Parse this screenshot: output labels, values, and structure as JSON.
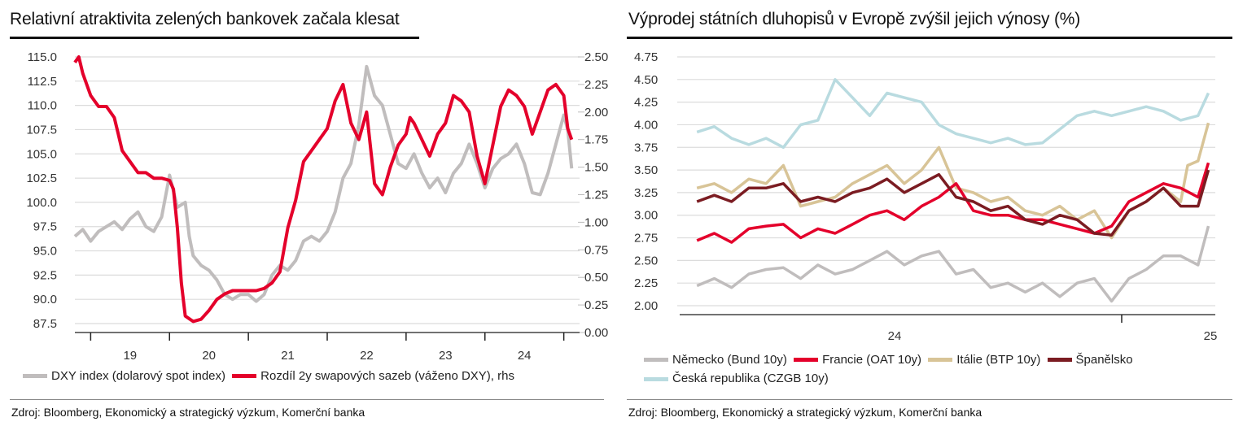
{
  "left_panel": {
    "title": "Relativní atraktivita zelených bankovek začala klesat",
    "source": "Zdroj: Bloomberg, Ekonomický a strategický výzkum, Komerční banka"
  },
  "right_panel": {
    "title": "Výprodej státních dluhopisů v Evropě zvýšil jejich výnosy (%)",
    "source": "Zdroj: Bloomberg, Ekonomický a strategický výzkum, Komerční banka"
  },
  "chart_data": [
    {
      "type": "line",
      "title": "Relativní atraktivita zelených bankovek začala klesat",
      "xlabel": "",
      "ylabel": "",
      "x_tick_labels": [
        "19",
        "20",
        "21",
        "22",
        "23",
        "24"
      ],
      "x_range": [
        2018.8,
        2025.2
      ],
      "y_left": {
        "range": [
          87.5,
          115.0
        ],
        "ticks": [
          "115.0",
          "112.5",
          "110.0",
          "107.5",
          "105.0",
          "102.5",
          "100.0",
          "97.5",
          "95.0",
          "92.5",
          "90.0",
          "87.5"
        ]
      },
      "y_right": {
        "range": [
          0.0,
          2.5
        ],
        "ticks": [
          "2.50",
          "2.25",
          "2.00",
          "1.75",
          "1.50",
          "1.25",
          "1.00",
          "0.75",
          "0.50",
          "0.25",
          "0.00"
        ]
      },
      "grid": true,
      "legend_position": "bottom",
      "series": [
        {
          "name": "DXY index (dolarový spot index)",
          "axis": "left",
          "color": "#c0bdbd",
          "x": [
            2018.8,
            2018.9,
            2019.0,
            2019.1,
            2019.2,
            2019.3,
            2019.4,
            2019.5,
            2019.6,
            2019.7,
            2019.8,
            2019.9,
            2020.0,
            2020.1,
            2020.2,
            2020.25,
            2020.3,
            2020.4,
            2020.5,
            2020.6,
            2020.7,
            2020.8,
            2020.9,
            2021.0,
            2021.1,
            2021.2,
            2021.3,
            2021.4,
            2021.5,
            2021.6,
            2021.7,
            2021.8,
            2021.9,
            2022.0,
            2022.1,
            2022.2,
            2022.3,
            2022.4,
            2022.5,
            2022.6,
            2022.7,
            2022.8,
            2022.9,
            2023.0,
            2023.1,
            2023.2,
            2023.3,
            2023.4,
            2023.5,
            2023.6,
            2023.7,
            2023.8,
            2023.9,
            2024.0,
            2024.1,
            2024.2,
            2024.3,
            2024.4,
            2024.5,
            2024.6,
            2024.7,
            2024.8,
            2024.9,
            2025.0,
            2025.05,
            2025.1
          ],
          "values": [
            96.5,
            97.2,
            96.0,
            97.0,
            97.5,
            98.0,
            97.2,
            98.3,
            99.0,
            97.5,
            97.0,
            98.5,
            102.8,
            99.5,
            100.0,
            96.5,
            94.5,
            93.5,
            93.0,
            92.0,
            90.5,
            90.0,
            90.5,
            90.5,
            89.8,
            90.5,
            92.5,
            93.5,
            93.0,
            94.0,
            96.0,
            96.5,
            96.0,
            97.0,
            99.0,
            102.5,
            104.0,
            108.0,
            114.0,
            111.0,
            110.0,
            107.0,
            104.0,
            103.5,
            105.0,
            103.0,
            101.5,
            102.5,
            101.0,
            103.0,
            104.0,
            106.0,
            104.0,
            101.5,
            103.5,
            104.5,
            105.0,
            106.0,
            104.0,
            101.0,
            100.8,
            103.0,
            106.0,
            109.0,
            107.5,
            103.5
          ]
        },
        {
          "name": "Rozdíl 2y swapových sazeb (váženo DXY), rhs",
          "axis": "right",
          "color": "#e4002b",
          "x": [
            2018.8,
            2018.85,
            2018.9,
            2019.0,
            2019.1,
            2019.2,
            2019.3,
            2019.35,
            2019.4,
            2019.5,
            2019.6,
            2019.7,
            2019.8,
            2019.9,
            2020.0,
            2020.05,
            2020.1,
            2020.15,
            2020.2,
            2020.3,
            2020.4,
            2020.5,
            2020.6,
            2020.7,
            2020.8,
            2020.9,
            2021.0,
            2021.1,
            2021.2,
            2021.3,
            2021.4,
            2021.5,
            2021.6,
            2021.7,
            2021.8,
            2021.9,
            2022.0,
            2022.1,
            2022.2,
            2022.3,
            2022.4,
            2022.5,
            2022.6,
            2022.7,
            2022.8,
            2022.9,
            2023.0,
            2023.05,
            2023.1,
            2023.2,
            2023.3,
            2023.4,
            2023.5,
            2023.6,
            2023.7,
            2023.8,
            2023.9,
            2024.0,
            2024.1,
            2024.2,
            2024.3,
            2024.4,
            2024.5,
            2024.6,
            2024.7,
            2024.8,
            2024.9,
            2025.0,
            2025.05,
            2025.1
          ],
          "values": [
            2.45,
            2.5,
            2.35,
            2.15,
            2.05,
            2.05,
            1.95,
            1.8,
            1.65,
            1.55,
            1.45,
            1.45,
            1.4,
            1.4,
            1.38,
            1.3,
            0.95,
            0.45,
            0.15,
            0.1,
            0.12,
            0.2,
            0.3,
            0.35,
            0.38,
            0.38,
            0.38,
            0.38,
            0.4,
            0.45,
            0.55,
            0.95,
            1.2,
            1.55,
            1.65,
            1.75,
            1.85,
            2.1,
            2.25,
            1.9,
            1.75,
            2.0,
            1.35,
            1.25,
            1.5,
            1.7,
            1.8,
            1.95,
            1.9,
            1.75,
            1.6,
            1.8,
            1.9,
            2.15,
            2.1,
            2.0,
            1.6,
            1.35,
            1.7,
            2.05,
            2.2,
            2.15,
            2.05,
            1.8,
            2.0,
            2.2,
            2.25,
            2.15,
            1.85,
            1.75
          ]
        }
      ]
    },
    {
      "type": "line",
      "title": "Výprodej státních dluhopisů v Evropě zvýšil jejich výnosy (%)",
      "xlabel": "",
      "ylabel": "",
      "x_tick_labels": [
        "24",
        "25"
      ],
      "x_range": [
        2023.55,
        2025.1
      ],
      "y_range": [
        2.0,
        4.75
      ],
      "y_ticks": [
        "4.75",
        "4.50",
        "4.25",
        "4.00",
        "3.75",
        "3.50",
        "3.25",
        "3.00",
        "2.75",
        "2.50",
        "2.25",
        "2.00"
      ],
      "grid": true,
      "legend_position": "bottom",
      "series": [
        {
          "name": "Německo (Bund 10y)",
          "color": "#c0bdbd",
          "x": [
            2023.6,
            2023.65,
            2023.7,
            2023.75,
            2023.8,
            2023.85,
            2023.9,
            2023.95,
            2024.0,
            2024.05,
            2024.1,
            2024.15,
            2024.2,
            2024.25,
            2024.3,
            2024.35,
            2024.4,
            2024.45,
            2024.5,
            2024.55,
            2024.6,
            2024.65,
            2024.7,
            2024.75,
            2024.8,
            2024.85,
            2024.9,
            2024.95,
            2025.0,
            2025.05,
            2025.08
          ],
          "values": [
            2.22,
            2.3,
            2.2,
            2.35,
            2.4,
            2.42,
            2.3,
            2.45,
            2.35,
            2.4,
            2.5,
            2.6,
            2.45,
            2.55,
            2.6,
            2.35,
            2.4,
            2.2,
            2.25,
            2.15,
            2.25,
            2.1,
            2.25,
            2.3,
            2.05,
            2.3,
            2.4,
            2.55,
            2.55,
            2.45,
            2.88
          ]
        },
        {
          "name": "Francie (OAT 10y)",
          "color": "#e4002b",
          "x": [
            2023.6,
            2023.65,
            2023.7,
            2023.75,
            2023.8,
            2023.85,
            2023.9,
            2023.95,
            2024.0,
            2024.05,
            2024.1,
            2024.15,
            2024.2,
            2024.25,
            2024.3,
            2024.35,
            2024.4,
            2024.45,
            2024.5,
            2024.55,
            2024.6,
            2024.65,
            2024.7,
            2024.75,
            2024.8,
            2024.85,
            2024.9,
            2024.95,
            2025.0,
            2025.05,
            2025.08
          ],
          "values": [
            2.72,
            2.8,
            2.7,
            2.85,
            2.88,
            2.9,
            2.75,
            2.85,
            2.8,
            2.9,
            3.0,
            3.05,
            2.95,
            3.1,
            3.2,
            3.35,
            3.05,
            3.0,
            3.0,
            2.95,
            2.95,
            2.9,
            2.85,
            2.8,
            2.88,
            3.15,
            3.25,
            3.35,
            3.3,
            3.2,
            3.58
          ]
        },
        {
          "name": "Itálie (BTP 10y)",
          "color": "#d8c497",
          "x": [
            2023.6,
            2023.65,
            2023.7,
            2023.75,
            2023.8,
            2023.85,
            2023.9,
            2023.95,
            2024.0,
            2024.05,
            2024.1,
            2024.15,
            2024.2,
            2024.25,
            2024.3,
            2024.35,
            2024.4,
            2024.45,
            2024.5,
            2024.55,
            2024.6,
            2024.65,
            2024.7,
            2024.75,
            2024.8,
            2024.85,
            2024.9,
            2024.95,
            2025.0,
            2025.02,
            2025.05,
            2025.08
          ],
          "values": [
            3.3,
            3.35,
            3.25,
            3.4,
            3.35,
            3.55,
            3.1,
            3.15,
            3.2,
            3.35,
            3.45,
            3.55,
            3.35,
            3.5,
            3.75,
            3.3,
            3.25,
            3.15,
            3.2,
            3.05,
            3.0,
            3.1,
            2.95,
            3.05,
            2.75,
            3.05,
            3.15,
            3.3,
            3.15,
            3.55,
            3.6,
            4.02
          ]
        },
        {
          "name": "Španělsko",
          "color": "#7b1c22",
          "x": [
            2023.6,
            2023.65,
            2023.7,
            2023.75,
            2023.8,
            2023.85,
            2023.9,
            2023.95,
            2024.0,
            2024.05,
            2024.1,
            2024.15,
            2024.2,
            2024.25,
            2024.3,
            2024.35,
            2024.4,
            2024.45,
            2024.5,
            2024.55,
            2024.6,
            2024.65,
            2024.7,
            2024.75,
            2024.8,
            2024.85,
            2024.9,
            2024.95,
            2025.0,
            2025.05,
            2025.08
          ],
          "values": [
            3.15,
            3.22,
            3.15,
            3.3,
            3.3,
            3.35,
            3.15,
            3.2,
            3.15,
            3.25,
            3.3,
            3.4,
            3.25,
            3.35,
            3.45,
            3.2,
            3.15,
            3.05,
            3.1,
            2.95,
            2.9,
            3.0,
            2.95,
            2.8,
            2.78,
            3.05,
            3.15,
            3.3,
            3.1,
            3.1,
            3.5
          ]
        },
        {
          "name": "Česká republika (CZGB 10y)",
          "color": "#b9dbe0",
          "x": [
            2023.6,
            2023.65,
            2023.7,
            2023.75,
            2023.8,
            2023.85,
            2023.9,
            2023.95,
            2024.0,
            2024.05,
            2024.1,
            2024.15,
            2024.2,
            2024.25,
            2024.3,
            2024.35,
            2024.4,
            2024.45,
            2024.5,
            2024.55,
            2024.6,
            2024.65,
            2024.7,
            2024.75,
            2024.8,
            2024.85,
            2024.9,
            2024.95,
            2025.0,
            2025.05,
            2025.08
          ],
          "values": [
            3.92,
            3.98,
            3.85,
            3.78,
            3.85,
            3.75,
            4.0,
            4.05,
            4.5,
            4.3,
            4.1,
            4.35,
            4.3,
            4.25,
            4.0,
            3.9,
            3.85,
            3.8,
            3.85,
            3.78,
            3.8,
            3.95,
            4.1,
            4.15,
            4.1,
            4.15,
            4.2,
            4.15,
            4.05,
            4.1,
            4.35
          ]
        }
      ]
    }
  ]
}
